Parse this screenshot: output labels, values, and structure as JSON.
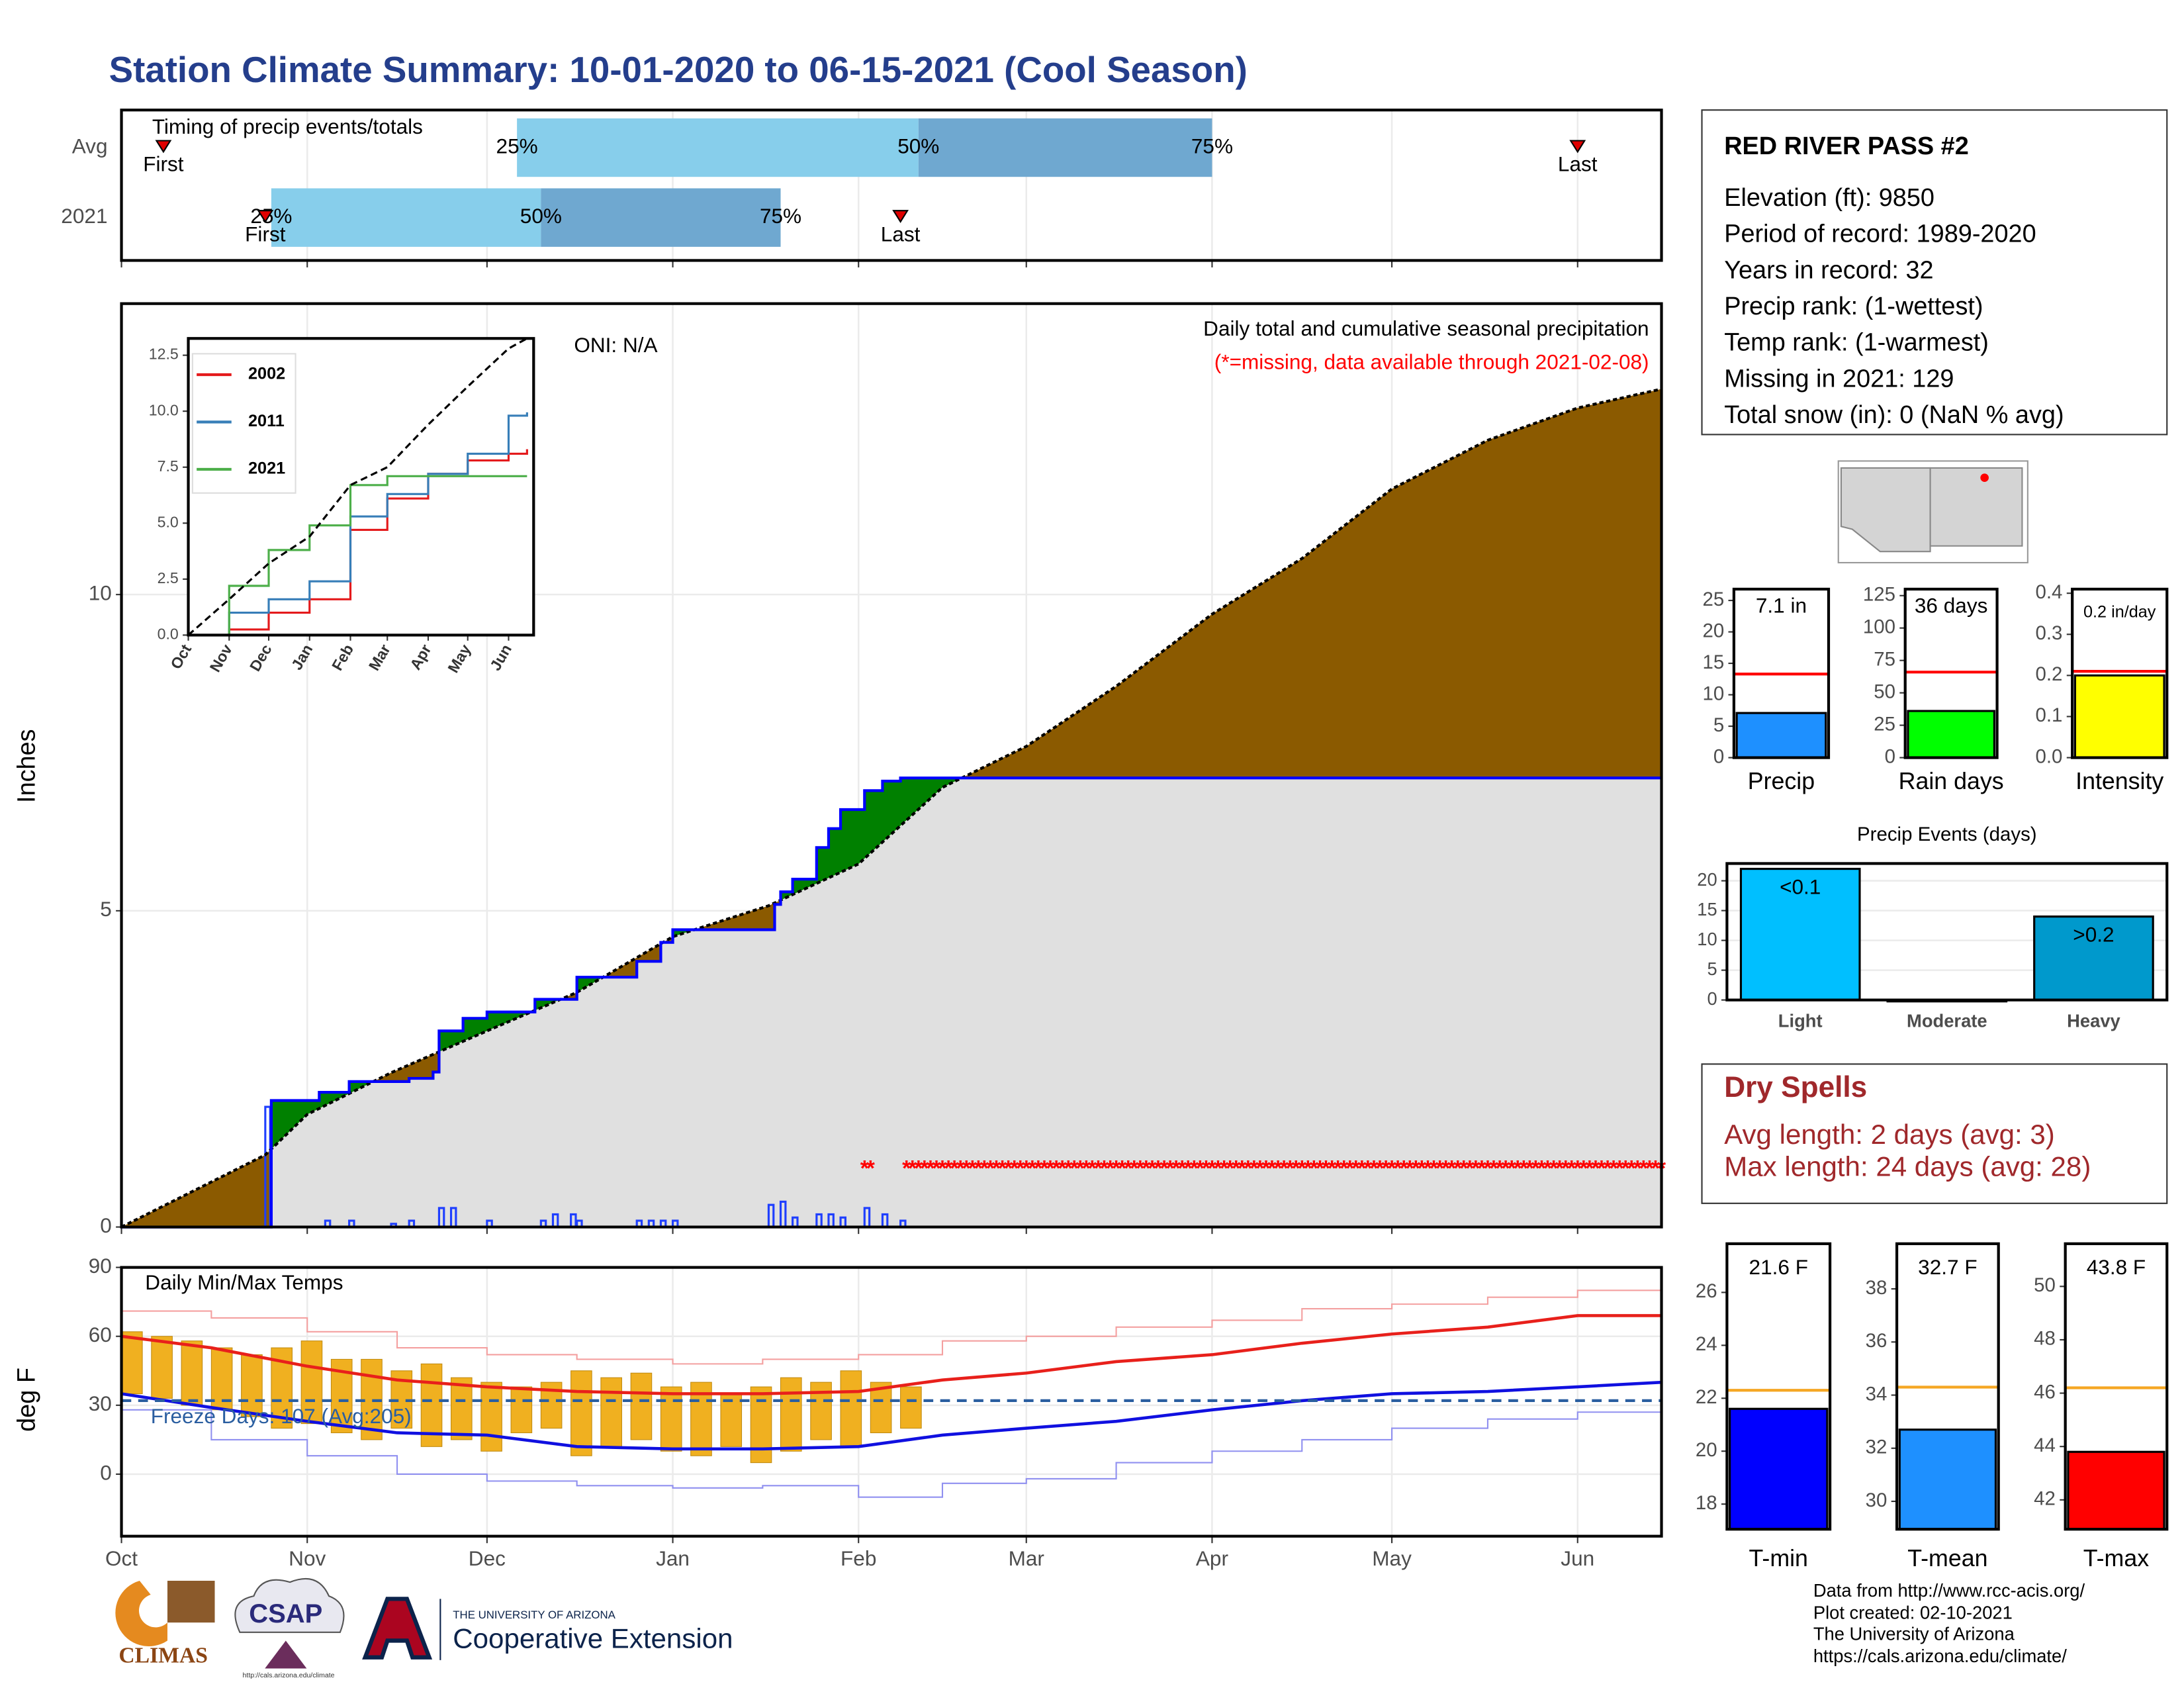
{
  "title": "Station Climate Summary: 10-01-2020 to 06-15-2021 (Cool Season)",
  "station": {
    "name": "RED RIVER PASS #2",
    "lines": [
      "Elevation (ft): 9850",
      "Period of record: 1989-2020",
      "Years in record: 32",
      "Precip rank:  (1-wettest)",
      "Temp rank:  (1-warmest)",
      "Missing in 2021: 129",
      "Total snow (in): 0 (NaN % avg)"
    ]
  },
  "dry_spells": {
    "title": "Dry Spells",
    "lines": [
      "Avg length: 2 days (avg: 3)",
      "Max length: 24 days (avg: 28)"
    ]
  },
  "credits": [
    "Data from http://www.rcc-acis.org/",
    "Plot created: 02-10-2021",
    "The University of Arizona",
    "https://cals.arizona.edu/climate/"
  ],
  "logos": {
    "climas": "CLIMAS",
    "csap": "CSAP",
    "csap_url": "http://cals.arizona.edu/climate",
    "university": "THE UNIVERSITY OF ARIZONA",
    "extension": "Cooperative Extension"
  },
  "chart_data": [
    {
      "type": "timing",
      "title": "Timing of precip events/totals",
      "categories": [
        "Avg",
        "2021"
      ],
      "xlim": [
        0,
        257
      ],
      "xticks": [
        0,
        31,
        61,
        92,
        123,
        151,
        182,
        212,
        243
      ],
      "series": [
        {
          "name": "First",
          "color": "#e00000",
          "values": [
            7,
            24
          ]
        },
        {
          "name": "25%",
          "values": [
            66,
            25
          ]
        },
        {
          "name": "50%",
          "color": "#87ceeb",
          "values": [
            133,
            70
          ]
        },
        {
          "name": "75%",
          "color": "#6fa8d0",
          "values": [
            182,
            110
          ]
        },
        {
          "name": "Last",
          "color": "#e00000",
          "values": [
            243,
            130
          ]
        }
      ]
    },
    {
      "type": "cumulative",
      "y_label": "Inches",
      "title": "Daily total and cumulative seasonal precipitation",
      "subtitle": "(*=missing, data available through 2021-02-08)",
      "subtitle_color": "#ff0000",
      "annotation": "ONI: N/A",
      "xlim": [
        0,
        257
      ],
      "xticks": [
        0,
        31,
        61,
        92,
        123,
        151,
        182,
        212,
        243
      ],
      "ylim": [
        0,
        14.6
      ],
      "yticks": [
        0,
        5,
        10
      ],
      "grid": true,
      "below_fill": "#e0e0e0",
      "series": [
        {
          "color": "#000000",
          "fill": "#8b5a00",
          "x": [
            0,
            24,
            31,
            45,
            61,
            76,
            92,
            108,
            123,
            137,
            151,
            166,
            182,
            197,
            212,
            228,
            243,
            257
          ],
          "values": [
            0,
            1.14,
            1.78,
            2.44,
            3.1,
            3.71,
            4.59,
            5.08,
            5.74,
            6.95,
            7.6,
            8.55,
            9.69,
            10.57,
            11.67,
            12.44,
            12.95,
            13.25
          ]
        },
        {
          "color": "#0000ff",
          "fill": "#008000",
          "x": [
            0,
            24,
            25,
            33,
            38,
            48,
            52,
            53,
            57,
            61,
            69,
            76,
            86,
            90,
            92,
            108,
            109,
            110,
            112,
            116,
            118,
            120,
            124,
            127,
            130,
            257
          ],
          "values": [
            0,
            0,
            2.0,
            2.13,
            2.3,
            2.35,
            2.45,
            3.1,
            3.3,
            3.4,
            3.6,
            3.95,
            4.2,
            4.5,
            4.7,
            4.7,
            5.1,
            5.3,
            5.5,
            6.0,
            6.3,
            6.6,
            6.9,
            7.05,
            7.1,
            7.1
          ]
        }
      ],
      "daily": {
        "color": "#1f3fff",
        "x": [
          24,
          34,
          38,
          45,
          48,
          53,
          55,
          61,
          70,
          72,
          75,
          76,
          86,
          88,
          90,
          92,
          108,
          110,
          112,
          116,
          118,
          120,
          124,
          127,
          130
        ],
        "values": [
          1.9,
          0.1,
          0.1,
          0.05,
          0.1,
          0.3,
          0.3,
          0.1,
          0.1,
          0.2,
          0.2,
          0.1,
          0.1,
          0.1,
          0.1,
          0.1,
          0.35,
          0.4,
          0.15,
          0.2,
          0.2,
          0.15,
          0.3,
          0.2,
          0.1
        ]
      },
      "missing": {
        "symbol": "*",
        "color": "#ff0000",
        "x": [
          124,
          125,
          131,
          132,
          133,
          134,
          135,
          136,
          137,
          138,
          139,
          140,
          141,
          142,
          143,
          144,
          145,
          146,
          147,
          148,
          149,
          150,
          151,
          152,
          153,
          154,
          155,
          156,
          157,
          158,
          159,
          160,
          161,
          162,
          163,
          164,
          165,
          166,
          167,
          168,
          169,
          170,
          171,
          172,
          173,
          174,
          175,
          176,
          177,
          178,
          179,
          180,
          181,
          182,
          183,
          184,
          185,
          186,
          187,
          188,
          189,
          190,
          191,
          192,
          193,
          194,
          195,
          196,
          197,
          198,
          199,
          200,
          201,
          202,
          203,
          204,
          205,
          206,
          207,
          208,
          209,
          210,
          211,
          212,
          213,
          214,
          215,
          216,
          217,
          218,
          219,
          220,
          221,
          222,
          223,
          224,
          225,
          226,
          227,
          228,
          229,
          230,
          231,
          232,
          233,
          234,
          235,
          236,
          237,
          238,
          239,
          240,
          241,
          242,
          243,
          244,
          245,
          246,
          247,
          248,
          249,
          250,
          251,
          252,
          253,
          254,
          255,
          256,
          257
        ]
      }
    },
    {
      "type": "line",
      "xlim": [
        0,
        262
      ],
      "xticks": [
        {
          "value": 0,
          "label": "Oct"
        },
        {
          "value": 31,
          "label": "Nov"
        },
        {
          "value": 61,
          "label": "Dec"
        },
        {
          "value": 92,
          "label": "Jan"
        },
        {
          "value": 123,
          "label": "Feb"
        },
        {
          "value": 151,
          "label": "Mar"
        },
        {
          "value": 182,
          "label": "Apr"
        },
        {
          "value": 212,
          "label": "May"
        },
        {
          "value": 243,
          "label": "Jun"
        }
      ],
      "ylim": [
        0,
        13.25
      ],
      "yticks": [
        {
          "value": 0,
          "label": "0.0"
        },
        2.5,
        {
          "value": 5,
          "label": "5.0"
        },
        7.5,
        {
          "value": 10,
          "label": "10.0"
        },
        12.5
      ],
      "x": [
        0,
        31,
        61,
        92,
        123,
        151,
        182,
        212,
        243,
        257
      ],
      "series": [
        {
          "name": "2002",
          "color": "#e41a1c",
          "values": [
            0,
            0.25,
            1.0,
            1.6,
            4.7,
            6.1,
            7.2,
            7.8,
            8.1,
            8.3
          ]
        },
        {
          "name": "2011",
          "color": "#377eb8",
          "values": [
            0,
            1.0,
            1.6,
            2.4,
            5.3,
            6.3,
            7.2,
            8.1,
            9.8,
            9.95
          ]
        },
        {
          "name": "2021",
          "color": "#4daf4a",
          "values": [
            0,
            2.2,
            3.8,
            4.9,
            6.7,
            7.1,
            7.1,
            7.1,
            7.1,
            7.1
          ]
        },
        {
          "color": "#000000",
          "dash": true,
          "values": [
            0,
            1.6,
            3.2,
            4.4,
            6.7,
            7.5,
            9.4,
            11.1,
            12.8,
            13.25
          ]
        }
      ]
    },
    {
      "type": "temperature",
      "title": "Daily Min/Max Temps",
      "annotation": "Freeze Days: 107 (Avg:205)",
      "annotation_color": "#2a5ea0",
      "y_label": "deg F",
      "xlim": [
        0,
        257
      ],
      "xticks": [
        {
          "value": 0,
          "label": "Oct"
        },
        {
          "value": 31,
          "label": "Nov"
        },
        {
          "value": 61,
          "label": "Dec"
        },
        {
          "value": 92,
          "label": "Jan"
        },
        {
          "value": 123,
          "label": "Feb"
        },
        {
          "value": 151,
          "label": "Mar"
        },
        {
          "value": 182,
          "label": "Apr"
        },
        {
          "value": 212,
          "label": "May"
        },
        {
          "value": 243,
          "label": "Jun"
        }
      ],
      "ylim": [
        -27,
        90
      ],
      "yticks": [
        0,
        30,
        60,
        90
      ],
      "grid": true,
      "freeze_line": 32,
      "freeze_color": "#2a5ea0",
      "x": [
        0,
        15,
        31,
        46,
        61,
        76,
        92,
        107,
        123,
        137,
        151,
        166,
        182,
        197,
        212,
        228,
        243,
        257
      ],
      "series": [
        {
          "color": "#f4a0a0",
          "step": true,
          "values": [
            71,
            68,
            62,
            55,
            52,
            50,
            48,
            50,
            52,
            58,
            60,
            64,
            67,
            72,
            74,
            77,
            80,
            79
          ]
        },
        {
          "color": "#e8201b",
          "values": [
            60,
            55,
            47,
            41,
            38,
            36,
            35,
            35,
            36,
            41,
            44,
            49,
            52,
            57,
            61,
            64,
            69,
            69
          ]
        },
        {
          "color": "#1010e0",
          "values": [
            35,
            29,
            23,
            18,
            17,
            12,
            11,
            11,
            12,
            17,
            20,
            23,
            28,
            32,
            35,
            36,
            38,
            40
          ]
        },
        {
          "color": "#9090f0",
          "step": true,
          "values": [
            28,
            15,
            8,
            0,
            -3,
            -5,
            -6,
            -5,
            -10,
            -4,
            -2,
            5,
            10,
            15,
            20,
            24,
            27,
            30
          ]
        }
      ],
      "daily": {
        "color": "#f0b020",
        "x": [
          0,
          5,
          10,
          15,
          20,
          25,
          30,
          35,
          40,
          45,
          50,
          55,
          60,
          65,
          70,
          75,
          80,
          85,
          90,
          95,
          100,
          105,
          110,
          115,
          120,
          125,
          130
        ],
        "min": [
          35,
          33,
          30,
          28,
          25,
          20,
          22,
          18,
          15,
          20,
          12,
          15,
          10,
          18,
          20,
          8,
          12,
          15,
          10,
          8,
          12,
          5,
          10,
          15,
          12,
          18,
          20
        ],
        "max": [
          62,
          60,
          58,
          55,
          52,
          55,
          58,
          50,
          50,
          45,
          48,
          42,
          40,
          38,
          40,
          45,
          42,
          44,
          38,
          40,
          35,
          38,
          42,
          40,
          45,
          40,
          38
        ]
      }
    },
    {
      "type": "bar",
      "categories": [
        "Precip"
      ],
      "values": [
        7.1
      ],
      "value_labels": [
        "7.1 in"
      ],
      "color": "#1e90ff",
      "average": 13.3,
      "average_color": "#ff0000",
      "ylim": [
        0,
        26.8
      ],
      "yticks": [
        0,
        5,
        10,
        15,
        20,
        25
      ]
    },
    {
      "type": "bar",
      "categories": [
        "Rain days"
      ],
      "values": [
        36
      ],
      "value_labels": [
        "36 days"
      ],
      "color": "#00ff00",
      "average": 66,
      "average_color": "#ff0000",
      "ylim": [
        0,
        130
      ],
      "yticks": [
        0,
        25,
        50,
        75,
        100,
        125
      ]
    },
    {
      "type": "bar",
      "categories": [
        "Intensity"
      ],
      "values": [
        0.2
      ],
      "value_labels": [
        "0.2 in/day"
      ],
      "color": "#ffff00",
      "average": 0.21,
      "average_color": "#ff0000",
      "ylim": [
        0,
        0.41
      ],
      "yticks": [
        {
          "value": 0,
          "label": "0.0"
        },
        0.1,
        0.2,
        0.3,
        0.4
      ]
    },
    {
      "type": "bar",
      "title": "Precip Events (days)",
      "categories": [
        "Light",
        "Moderate",
        "Heavy"
      ],
      "values": [
        22,
        0,
        14
      ],
      "value_labels": [
        "<0.1",
        null,
        ">0.2"
      ],
      "colors": [
        "#00bfff",
        "#0099cc",
        "#0099cc"
      ],
      "ylim": [
        0,
        22.9
      ],
      "yticks": [
        0,
        5,
        10,
        15,
        20
      ],
      "grid": true
    },
    {
      "type": "bar",
      "categories": [
        "T-min"
      ],
      "values": [
        21.6
      ],
      "value_labels": [
        "21.6 F"
      ],
      "color": "#0000ff",
      "average": 22.3,
      "average_color": "#f5a623",
      "ylim": [
        17.05,
        27.84
      ],
      "yticks": [
        18,
        20,
        22,
        24,
        26
      ]
    },
    {
      "type": "bar",
      "categories": [
        "T-mean"
      ],
      "values": [
        32.7
      ],
      "value_labels": [
        "32.7 F"
      ],
      "color": "#1e90ff",
      "average": 34.3,
      "average_color": "#f5a623",
      "ylim": [
        28.95,
        39.7
      ],
      "yticks": [
        30,
        32,
        34,
        36,
        38
      ]
    },
    {
      "type": "bar",
      "categories": [
        "T-max"
      ],
      "values": [
        43.8
      ],
      "value_labels": [
        "43.8 F"
      ],
      "color": "#ff0000",
      "average": 46.2,
      "average_color": "#f5a623",
      "ylim": [
        40.9,
        51.6
      ],
      "yticks": [
        42,
        44,
        46,
        48,
        50
      ]
    }
  ]
}
